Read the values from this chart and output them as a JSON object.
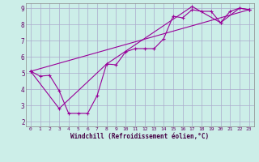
{
  "xlabel": "Windchill (Refroidissement éolien,°C)",
  "background_color": "#cceee8",
  "grid_color": "#aaaacc",
  "line_color": "#990099",
  "xlim": [
    -0.5,
    23.5
  ],
  "ylim": [
    1.7,
    9.3
  ],
  "xticks": [
    0,
    1,
    2,
    3,
    4,
    5,
    6,
    7,
    8,
    9,
    10,
    11,
    12,
    13,
    14,
    15,
    16,
    17,
    18,
    19,
    20,
    21,
    22,
    23
  ],
  "yticks": [
    2,
    3,
    4,
    5,
    6,
    7,
    8,
    9
  ],
  "series_straight": [
    [
      0,
      5.1
    ],
    [
      23,
      8.9
    ]
  ],
  "series_zigzag": [
    [
      0,
      5.1
    ],
    [
      3,
      2.8
    ],
    [
      8,
      5.55
    ],
    [
      17,
      9.1
    ],
    [
      20,
      8.1
    ],
    [
      22,
      9.0
    ],
    [
      23,
      8.9
    ]
  ],
  "series_main": [
    [
      0,
      5.1
    ],
    [
      1,
      4.8
    ],
    [
      2,
      4.85
    ],
    [
      3,
      3.9
    ],
    [
      4,
      2.5
    ],
    [
      5,
      2.5
    ],
    [
      6,
      2.5
    ],
    [
      7,
      3.6
    ],
    [
      8,
      5.55
    ],
    [
      9,
      5.5
    ],
    [
      10,
      6.3
    ],
    [
      11,
      6.5
    ],
    [
      12,
      6.5
    ],
    [
      13,
      6.5
    ],
    [
      14,
      7.1
    ],
    [
      15,
      8.5
    ],
    [
      16,
      8.4
    ],
    [
      17,
      8.9
    ],
    [
      18,
      8.8
    ],
    [
      19,
      8.8
    ],
    [
      20,
      8.1
    ],
    [
      21,
      8.8
    ],
    [
      22,
      9.0
    ],
    [
      23,
      8.9
    ]
  ]
}
